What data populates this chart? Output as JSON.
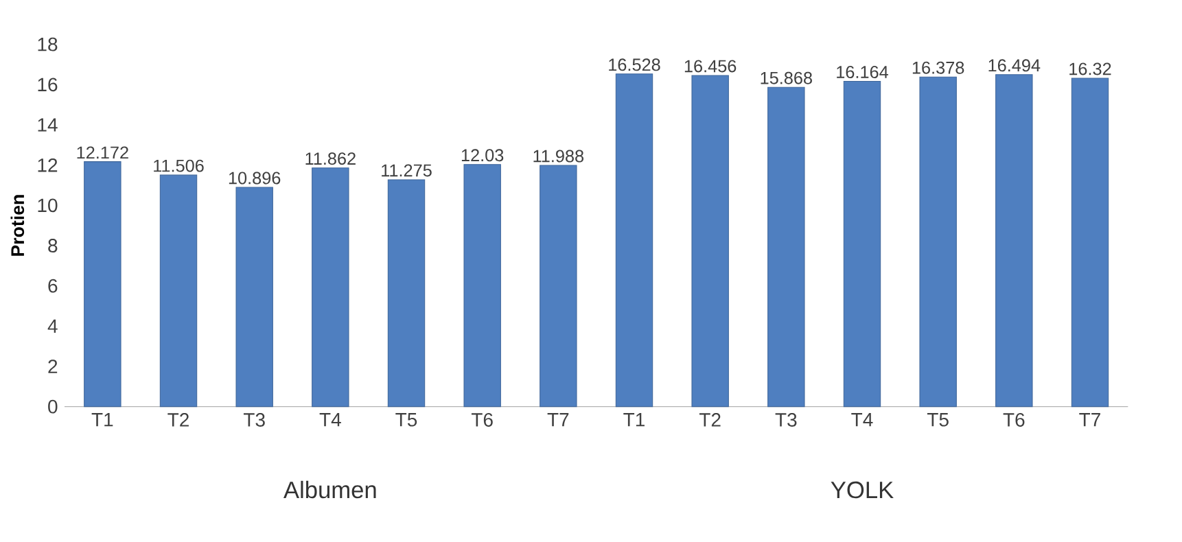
{
  "chart_data": {
    "type": "bar",
    "ylabel": "Protien",
    "categories": [
      "T1",
      "T2",
      "T3",
      "T4",
      "T5",
      "T6",
      "T7",
      "T1",
      "T2",
      "T3",
      "T4",
      "T5",
      "T6",
      "T7"
    ],
    "values": [
      12.172,
      11.506,
      10.896,
      11.862,
      11.275,
      12.03,
      11.988,
      16.528,
      16.456,
      15.868,
      16.164,
      16.378,
      16.494,
      16.32
    ],
    "color": "#4f7fc0",
    "ylim": [
      0,
      18
    ],
    "yticks": [
      0,
      2,
      4,
      6,
      8,
      10,
      12,
      14,
      16,
      18
    ],
    "data_labels": true,
    "annotations": [
      "Albumen",
      "YOLK"
    ]
  }
}
